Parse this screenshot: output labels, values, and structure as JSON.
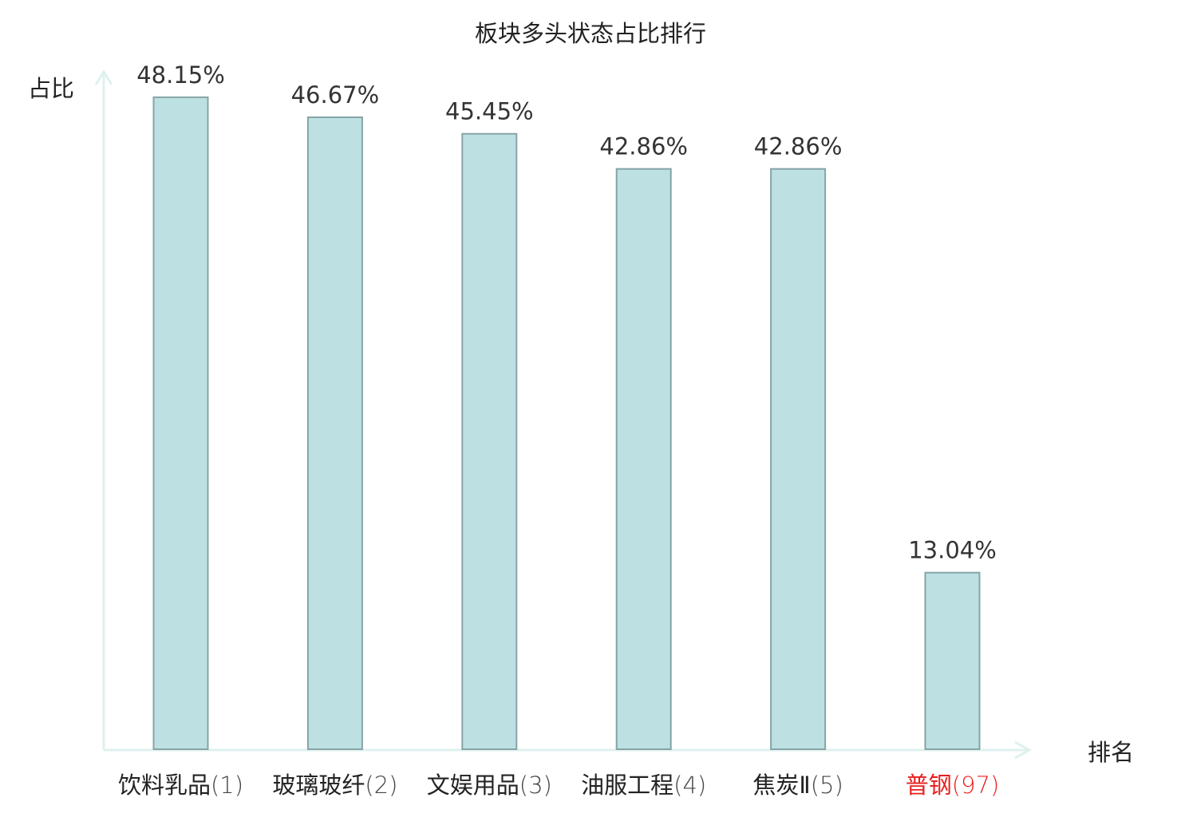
{
  "chart_data": {
    "type": "bar",
    "title": "板块多头状态占比排行",
    "ylabel": "占比",
    "xlabel": "排名",
    "categories": [
      "饮料乳品",
      "玻璃玻纤",
      "文娱用品",
      "油服工程",
      "焦炭Ⅱ",
      "普钢"
    ],
    "ranks": [
      "(1)",
      "(2)",
      "(3)",
      "(4)",
      "(5)",
      "(97)"
    ],
    "values": [
      48.15,
      46.67,
      45.45,
      42.86,
      42.86,
      13.04
    ],
    "value_labels": [
      "48.15%",
      "46.67%",
      "45.45%",
      "42.86%",
      "42.86%",
      "13.04%"
    ],
    "highlight_index": 5,
    "ylim": [
      0,
      50
    ],
    "grid": false,
    "colors": {
      "bar_fill": "#bde1e3",
      "bar_stroke": "#86a4a6",
      "axis": "#dff1ee",
      "label_text": "#222222",
      "value_text": "#333333",
      "highlight": "#e8201f"
    }
  }
}
